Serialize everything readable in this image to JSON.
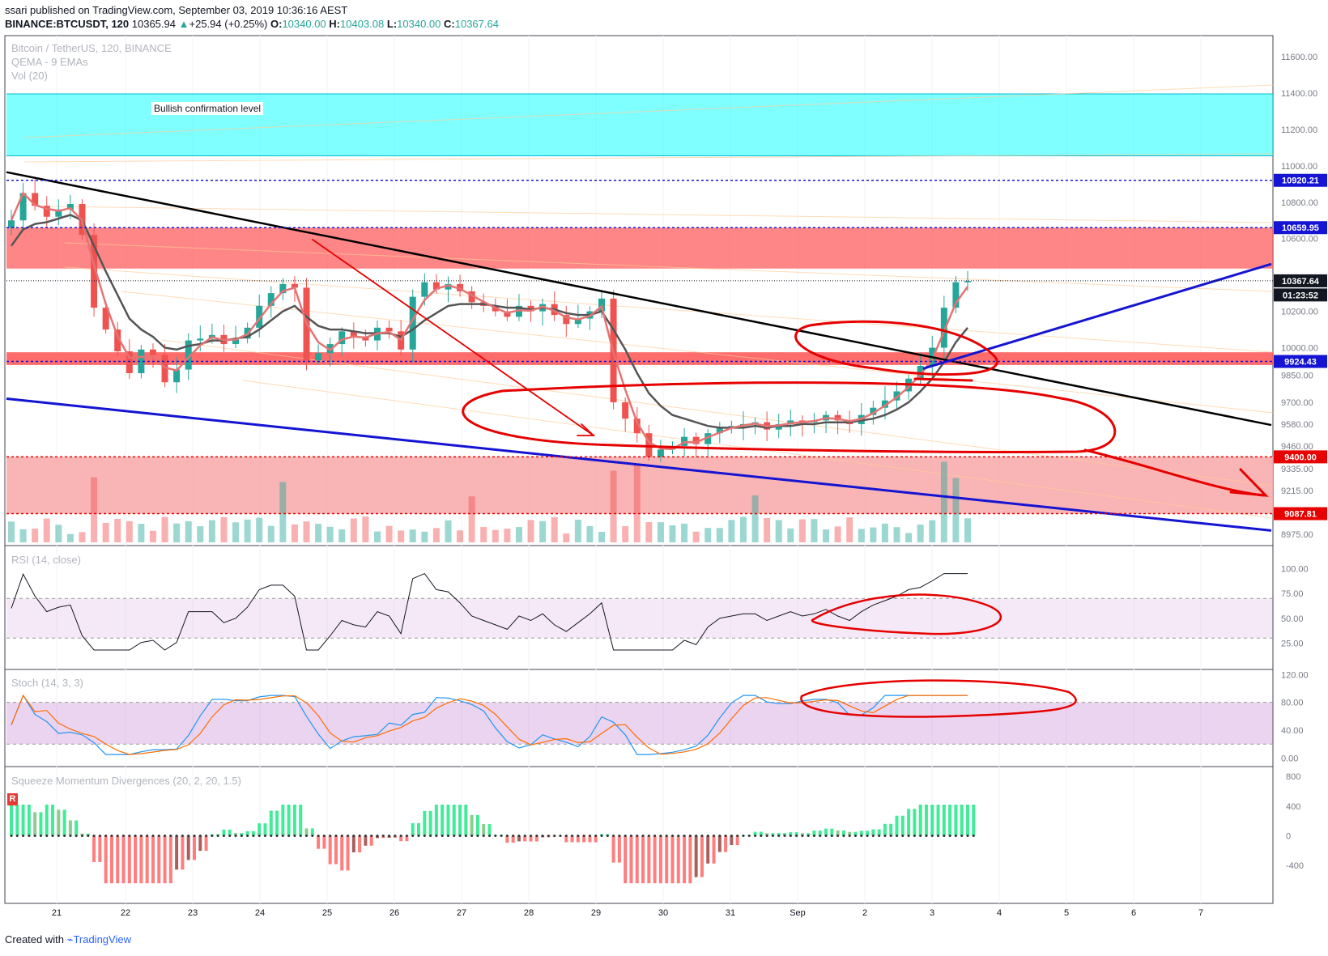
{
  "header": {
    "published_line": "ssari published on TradingView.com, September 03, 2019 10:36:16 AEST",
    "symbol": "BINANCE:BTCUSDT, 120",
    "last": "10365.94",
    "change": "+25.94 (+0.25%)",
    "o_label": "O:",
    "o_value": "10340.00",
    "h_label": "H:",
    "h_value": "10403.08",
    "l_label": "L:",
    "l_value": "10340.00",
    "c_label": "C:",
    "c_value": "10367.64"
  },
  "legend": {
    "title": "Bitcoin / TetherUS, 120, BINANCE",
    "ema": "QEMA - 9 EMAs",
    "vol": "Vol (20)"
  },
  "annotation": {
    "bullish": "Bullish confirmation level"
  },
  "panes": {
    "rsi": "RSI (14, close)",
    "stoch": "Stoch (14, 3, 3)",
    "squeeze": "Squeeze Momentum Divergences (20, 2, 20, 1.5)",
    "squeeze_badge": "R"
  },
  "footer": {
    "created": "Created with",
    "brand": "TradingView"
  },
  "colors": {
    "up": "#26a69a",
    "down": "#ef5350",
    "resistance_zone": "#ff5252",
    "support_zone": "#f8a8a8",
    "bullish_zone": "#00ffff",
    "trend_blue": "#1414d2",
    "drawing_red": "#e60000"
  },
  "chart_data": {
    "type": "candlestick",
    "title": "Bitcoin / TetherUS, 120, BINANCE",
    "x_ticks": [
      "21",
      "22",
      "23",
      "24",
      "25",
      "26",
      "27",
      "28",
      "29",
      "30",
      "31",
      "Sep",
      "2",
      "3",
      "4",
      "5",
      "6",
      "7"
    ],
    "y_ticks": [
      "11600.00",
      "11400.00",
      "11200.00",
      "11000.00",
      "10800.00",
      "10600.00",
      "10200.00",
      "10000.00",
      "9850.00",
      "9700.00",
      "9580.00",
      "9460.00",
      "9335.00",
      "9215.00",
      "8975.00"
    ],
    "ylim": [
      8930,
      11680
    ],
    "price_labels": [
      {
        "text": "10920.21",
        "value": 10920.21,
        "color": "#1414d2"
      },
      {
        "text": "10659.95",
        "value": 10659.95,
        "color": "#1414d2"
      },
      {
        "text": "10367.64",
        "value": 10367.64,
        "color": "#131722"
      },
      {
        "text": "01:23:52",
        "value": 10290,
        "color": "#131722"
      },
      {
        "text": "9924.43",
        "value": 9924.43,
        "color": "#1414d2"
      },
      {
        "text": "9400.00",
        "value": 9400.0,
        "color": "#e60000"
      },
      {
        "text": "9087.81",
        "value": 9087.81,
        "color": "#e60000"
      }
    ],
    "zones": [
      {
        "name": "Bullish confirmation level",
        "from": 11055,
        "to": 11395
      },
      {
        "name": "resistance",
        "from": 10435,
        "to": 10660
      },
      {
        "name": "pivot",
        "from": 9905,
        "to": 9975
      },
      {
        "name": "support",
        "from": 9088,
        "to": 9400
      }
    ],
    "close_series": [
      10700,
      10850,
      10780,
      10720,
      10760,
      10790,
      10620,
      10220,
      10100,
      9980,
      9860,
      9990,
      9960,
      9810,
      9880,
      10040,
      10050,
      10070,
      10020,
      10050,
      10110,
      10230,
      10300,
      10350,
      10330,
      9930,
      9970,
      10020,
      10090,
      10060,
      10040,
      10110,
      10090,
      9990,
      10280,
      10360,
      10320,
      10350,
      10310,
      10250,
      10230,
      10200,
      10170,
      10230,
      10200,
      10240,
      10180,
      10130,
      10160,
      10200,
      10270,
      9700,
      9610,
      9530,
      9400,
      9440,
      9460,
      9510,
      9470,
      9530,
      9560,
      9570,
      9580,
      9590,
      9550,
      9580,
      9600,
      9590,
      9600,
      9630,
      9600,
      9580,
      9630,
      9670,
      9710,
      9760,
      9830,
      9900,
      10000,
      10220,
      10360,
      10367
    ],
    "ema_series": [
      10560,
      10650,
      10680,
      10690,
      10710,
      10730,
      10700,
      10560,
      10420,
      10290,
      10160,
      10100,
      10060,
      10000,
      9990,
      10010,
      10020,
      10040,
      10040,
      10050,
      10060,
      10100,
      10150,
      10200,
      10230,
      10170,
      10120,
      10100,
      10100,
      10090,
      10080,
      10080,
      10080,
      10060,
      10100,
      10150,
      10190,
      10230,
      10240,
      10240,
      10240,
      10230,
      10220,
      10220,
      10210,
      10220,
      10210,
      10190,
      10180,
      10180,
      10200,
      10100,
      9990,
      9860,
      9750,
      9680,
      9630,
      9610,
      9590,
      9570,
      9560,
      9560,
      9560,
      9570,
      9560,
      9570,
      9570,
      9580,
      9580,
      9590,
      9590,
      9590,
      9600,
      9610,
      9630,
      9660,
      9700,
      9760,
      9830,
      9920,
      10030,
      10110
    ],
    "rsi": {
      "ylim": [
        0,
        120
      ],
      "ticks": [
        "100.00",
        "75.00",
        "50.00",
        "25.00"
      ],
      "band": [
        30,
        70
      ]
    },
    "stoch": {
      "ylim": [
        -10,
        125
      ],
      "ticks": [
        "120.00",
        "80.00",
        "40.00",
        "0.00"
      ],
      "band": [
        20,
        80
      ]
    },
    "squeeze": {
      "ylim": [
        -900,
        900
      ],
      "ticks": [
        "800",
        "400",
        "0",
        "-400"
      ]
    }
  }
}
